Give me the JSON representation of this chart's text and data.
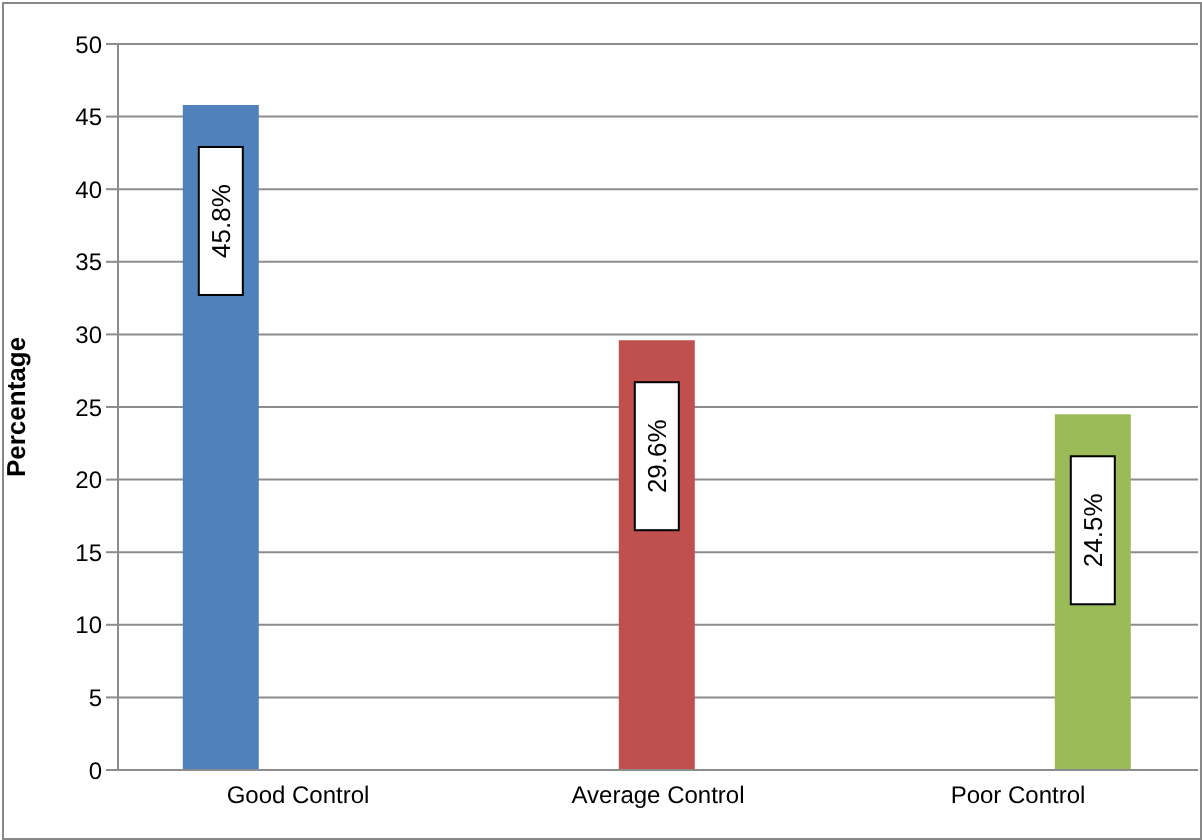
{
  "chart_data": {
    "type": "bar",
    "ylabel": "Percentage",
    "categories": [
      "Good Control",
      "Average Control",
      "Poor Control"
    ],
    "series": [
      {
        "color": "#4f81bd",
        "values": [
          45.8,
          null,
          null
        ],
        "value_labels": [
          "45.8%",
          null,
          null
        ]
      },
      {
        "color": "#c0504d",
        "values": [
          null,
          29.6,
          null
        ],
        "value_labels": [
          null,
          "29.6%",
          null
        ]
      },
      {
        "color": "#9bbb59",
        "values": [
          null,
          null,
          24.5
        ],
        "value_labels": [
          null,
          null,
          "24.5%"
        ]
      }
    ],
    "ylim": [
      0,
      50
    ],
    "yticks": [
      0,
      5,
      10,
      15,
      20,
      25,
      30,
      35,
      40,
      45,
      50
    ],
    "grid": "y",
    "legend": false
  }
}
